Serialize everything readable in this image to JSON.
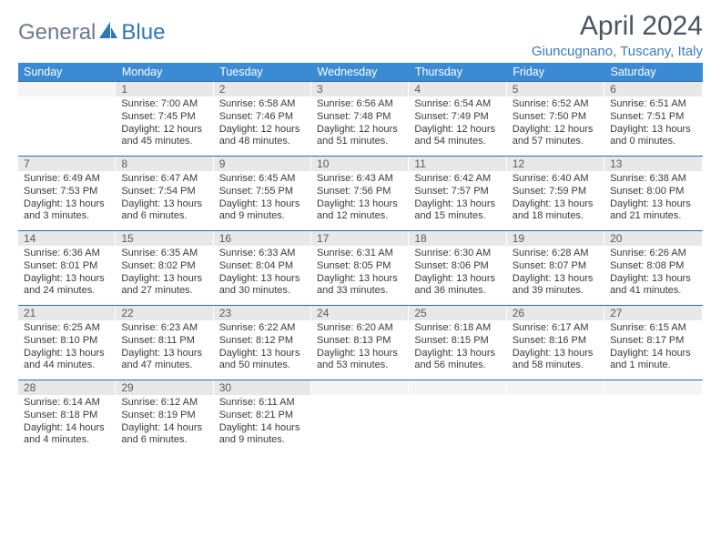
{
  "logo": {
    "text1": "General",
    "text2": "Blue"
  },
  "title": "April 2024",
  "subtitle": "Giuncugnano, Tuscany, Italy",
  "colors": {
    "header_bg": "#3b8bd4",
    "header_text": "#ffffff",
    "daynum_bg": "#e8e8e8",
    "row_border": "#2d6aa8",
    "title_color": "#4a5560",
    "subtitle_color": "#3b7bbc",
    "logo_gray": "#6b7a8a",
    "logo_blue": "#2f76bb"
  },
  "daynames": [
    "Sunday",
    "Monday",
    "Tuesday",
    "Wednesday",
    "Thursday",
    "Friday",
    "Saturday"
  ],
  "weeks": [
    [
      {
        "n": "",
        "l": [
          "",
          "",
          "",
          ""
        ]
      },
      {
        "n": "1",
        "l": [
          "Sunrise: 7:00 AM",
          "Sunset: 7:45 PM",
          "Daylight: 12 hours",
          "and 45 minutes."
        ]
      },
      {
        "n": "2",
        "l": [
          "Sunrise: 6:58 AM",
          "Sunset: 7:46 PM",
          "Daylight: 12 hours",
          "and 48 minutes."
        ]
      },
      {
        "n": "3",
        "l": [
          "Sunrise: 6:56 AM",
          "Sunset: 7:48 PM",
          "Daylight: 12 hours",
          "and 51 minutes."
        ]
      },
      {
        "n": "4",
        "l": [
          "Sunrise: 6:54 AM",
          "Sunset: 7:49 PM",
          "Daylight: 12 hours",
          "and 54 minutes."
        ]
      },
      {
        "n": "5",
        "l": [
          "Sunrise: 6:52 AM",
          "Sunset: 7:50 PM",
          "Daylight: 12 hours",
          "and 57 minutes."
        ]
      },
      {
        "n": "6",
        "l": [
          "Sunrise: 6:51 AM",
          "Sunset: 7:51 PM",
          "Daylight: 13 hours",
          "and 0 minutes."
        ]
      }
    ],
    [
      {
        "n": "7",
        "l": [
          "Sunrise: 6:49 AM",
          "Sunset: 7:53 PM",
          "Daylight: 13 hours",
          "and 3 minutes."
        ]
      },
      {
        "n": "8",
        "l": [
          "Sunrise: 6:47 AM",
          "Sunset: 7:54 PM",
          "Daylight: 13 hours",
          "and 6 minutes."
        ]
      },
      {
        "n": "9",
        "l": [
          "Sunrise: 6:45 AM",
          "Sunset: 7:55 PM",
          "Daylight: 13 hours",
          "and 9 minutes."
        ]
      },
      {
        "n": "10",
        "l": [
          "Sunrise: 6:43 AM",
          "Sunset: 7:56 PM",
          "Daylight: 13 hours",
          "and 12 minutes."
        ]
      },
      {
        "n": "11",
        "l": [
          "Sunrise: 6:42 AM",
          "Sunset: 7:57 PM",
          "Daylight: 13 hours",
          "and 15 minutes."
        ]
      },
      {
        "n": "12",
        "l": [
          "Sunrise: 6:40 AM",
          "Sunset: 7:59 PM",
          "Daylight: 13 hours",
          "and 18 minutes."
        ]
      },
      {
        "n": "13",
        "l": [
          "Sunrise: 6:38 AM",
          "Sunset: 8:00 PM",
          "Daylight: 13 hours",
          "and 21 minutes."
        ]
      }
    ],
    [
      {
        "n": "14",
        "l": [
          "Sunrise: 6:36 AM",
          "Sunset: 8:01 PM",
          "Daylight: 13 hours",
          "and 24 minutes."
        ]
      },
      {
        "n": "15",
        "l": [
          "Sunrise: 6:35 AM",
          "Sunset: 8:02 PM",
          "Daylight: 13 hours",
          "and 27 minutes."
        ]
      },
      {
        "n": "16",
        "l": [
          "Sunrise: 6:33 AM",
          "Sunset: 8:04 PM",
          "Daylight: 13 hours",
          "and 30 minutes."
        ]
      },
      {
        "n": "17",
        "l": [
          "Sunrise: 6:31 AM",
          "Sunset: 8:05 PM",
          "Daylight: 13 hours",
          "and 33 minutes."
        ]
      },
      {
        "n": "18",
        "l": [
          "Sunrise: 6:30 AM",
          "Sunset: 8:06 PM",
          "Daylight: 13 hours",
          "and 36 minutes."
        ]
      },
      {
        "n": "19",
        "l": [
          "Sunrise: 6:28 AM",
          "Sunset: 8:07 PM",
          "Daylight: 13 hours",
          "and 39 minutes."
        ]
      },
      {
        "n": "20",
        "l": [
          "Sunrise: 6:26 AM",
          "Sunset: 8:08 PM",
          "Daylight: 13 hours",
          "and 41 minutes."
        ]
      }
    ],
    [
      {
        "n": "21",
        "l": [
          "Sunrise: 6:25 AM",
          "Sunset: 8:10 PM",
          "Daylight: 13 hours",
          "and 44 minutes."
        ]
      },
      {
        "n": "22",
        "l": [
          "Sunrise: 6:23 AM",
          "Sunset: 8:11 PM",
          "Daylight: 13 hours",
          "and 47 minutes."
        ]
      },
      {
        "n": "23",
        "l": [
          "Sunrise: 6:22 AM",
          "Sunset: 8:12 PM",
          "Daylight: 13 hours",
          "and 50 minutes."
        ]
      },
      {
        "n": "24",
        "l": [
          "Sunrise: 6:20 AM",
          "Sunset: 8:13 PM",
          "Daylight: 13 hours",
          "and 53 minutes."
        ]
      },
      {
        "n": "25",
        "l": [
          "Sunrise: 6:18 AM",
          "Sunset: 8:15 PM",
          "Daylight: 13 hours",
          "and 56 minutes."
        ]
      },
      {
        "n": "26",
        "l": [
          "Sunrise: 6:17 AM",
          "Sunset: 8:16 PM",
          "Daylight: 13 hours",
          "and 58 minutes."
        ]
      },
      {
        "n": "27",
        "l": [
          "Sunrise: 6:15 AM",
          "Sunset: 8:17 PM",
          "Daylight: 14 hours",
          "and 1 minute."
        ]
      }
    ],
    [
      {
        "n": "28",
        "l": [
          "Sunrise: 6:14 AM",
          "Sunset: 8:18 PM",
          "Daylight: 14 hours",
          "and 4 minutes."
        ]
      },
      {
        "n": "29",
        "l": [
          "Sunrise: 6:12 AM",
          "Sunset: 8:19 PM",
          "Daylight: 14 hours",
          "and 6 minutes."
        ]
      },
      {
        "n": "30",
        "l": [
          "Sunrise: 6:11 AM",
          "Sunset: 8:21 PM",
          "Daylight: 14 hours",
          "and 9 minutes."
        ]
      },
      {
        "n": "",
        "l": [
          "",
          "",
          "",
          ""
        ]
      },
      {
        "n": "",
        "l": [
          "",
          "",
          "",
          ""
        ]
      },
      {
        "n": "",
        "l": [
          "",
          "",
          "",
          ""
        ]
      },
      {
        "n": "",
        "l": [
          "",
          "",
          "",
          ""
        ]
      }
    ]
  ]
}
